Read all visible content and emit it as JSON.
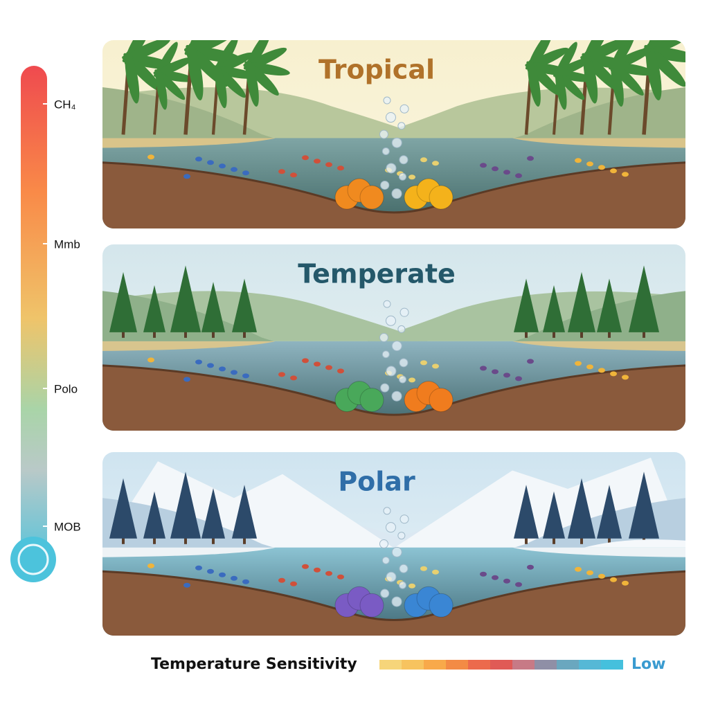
{
  "thermometer": {
    "labels": [
      "CH₄",
      "Mmb",
      "Polo",
      "MOB"
    ]
  },
  "panels": [
    {
      "title": "Tropical"
    },
    {
      "title": "Temperate"
    },
    {
      "title": "Polar"
    }
  ],
  "legend": {
    "title": "Temperature Sensitivity",
    "end_label": "Low"
  }
}
